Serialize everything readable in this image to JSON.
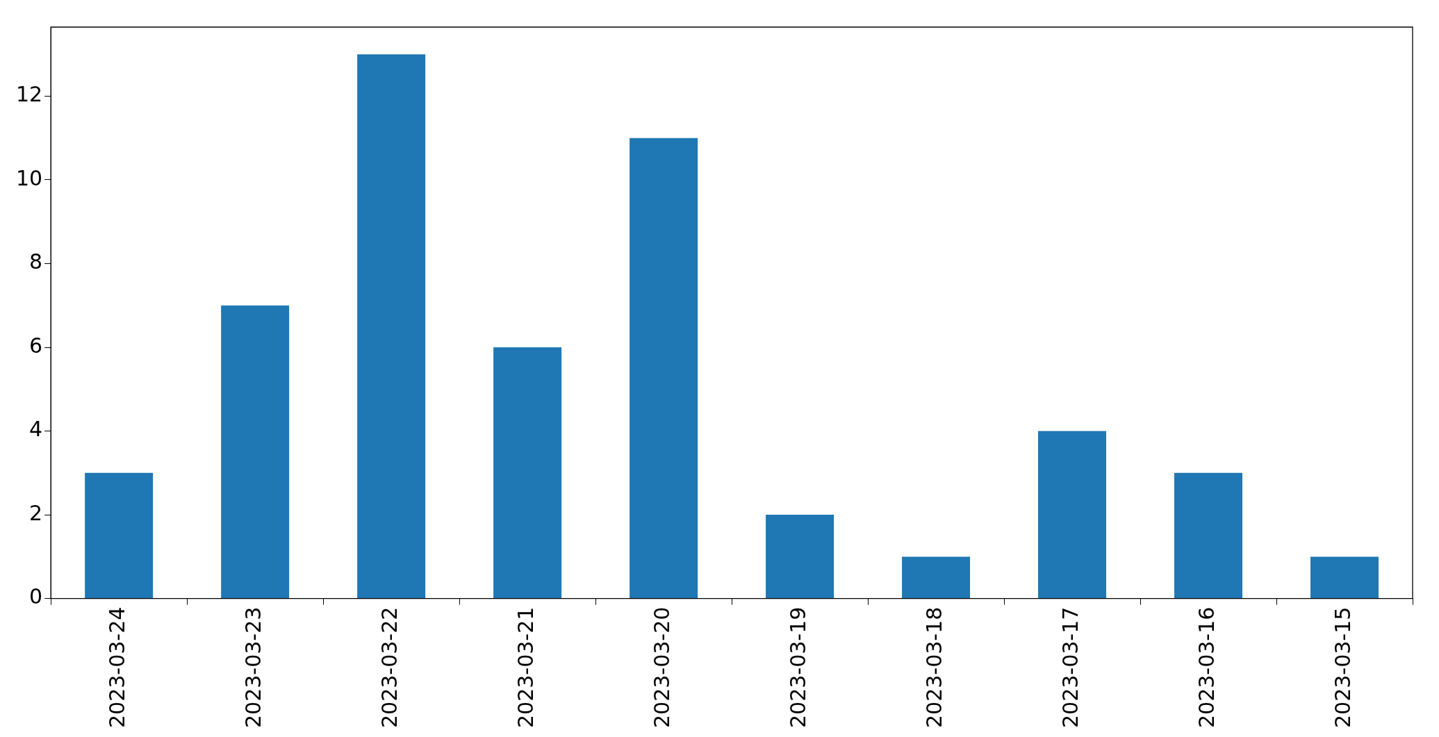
{
  "chart_data": {
    "type": "bar",
    "categories": [
      "2023-03-24",
      "2023-03-23",
      "2023-03-22",
      "2023-03-21",
      "2023-03-20",
      "2023-03-19",
      "2023-03-18",
      "2023-03-17",
      "2023-03-16",
      "2023-03-15"
    ],
    "values": [
      3,
      7,
      13,
      6,
      11,
      2,
      1,
      4,
      3,
      1
    ],
    "color": "#1f77b4",
    "ylim": [
      0,
      13.65
    ],
    "yticks": [
      0,
      2,
      4,
      6,
      8,
      10,
      12
    ],
    "grid": false,
    "legend": false
  }
}
